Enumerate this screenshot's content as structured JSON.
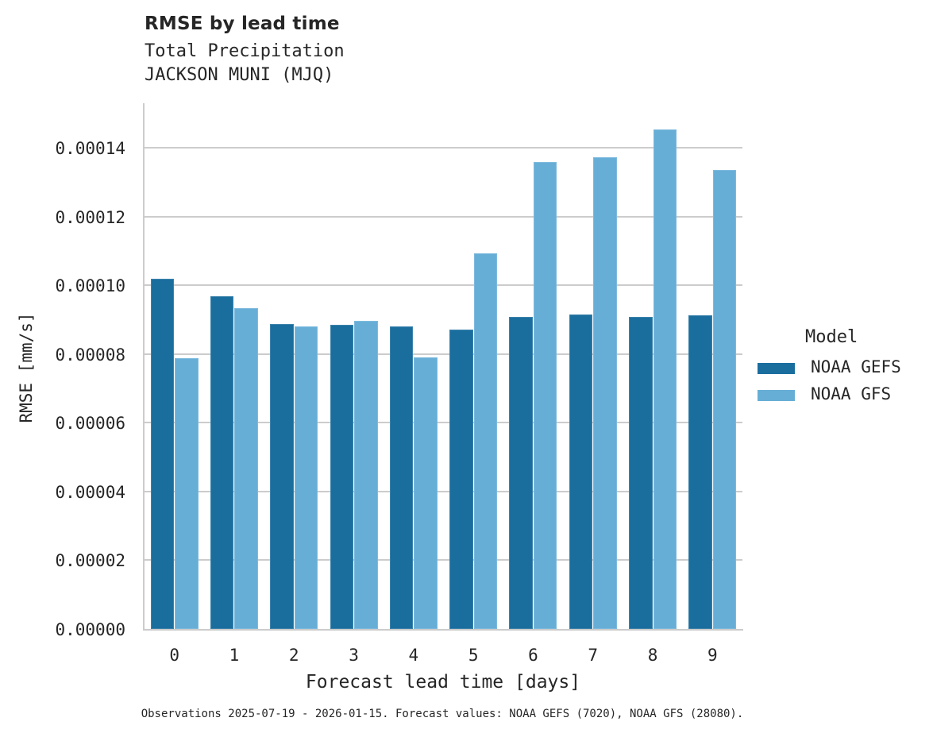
{
  "header": {
    "title": "RMSE by lead time",
    "subtitle_1": "Total Precipitation",
    "subtitle_2": "JACKSON MUNI (MJQ)"
  },
  "axes": {
    "xlabel": "Forecast lead time [days]",
    "ylabel": "RMSE [mm/s]",
    "yticks": [
      "0.00000",
      "0.00002",
      "0.00004",
      "0.00006",
      "0.00008",
      "0.00010",
      "0.00012",
      "0.00014"
    ],
    "xticks": [
      "0",
      "1",
      "2",
      "3",
      "4",
      "5",
      "6",
      "7",
      "8",
      "9"
    ]
  },
  "legend": {
    "title": "Model",
    "items": [
      {
        "label": "NOAA GEFS",
        "color": "#1a6e9e"
      },
      {
        "label": "NOAA GFS",
        "color": "#67aed7"
      }
    ]
  },
  "footnote": "Observations 2025-07-19 - 2026-01-15. Forecast values: NOAA GEFS (7020), NOAA GFS (28080).",
  "chart_data": {
    "type": "bar",
    "title": "RMSE by lead time",
    "subtitle": "Total Precipitation — JACKSON MUNI (MJQ)",
    "xlabel": "Forecast lead time [days]",
    "ylabel": "RMSE [mm/s]",
    "categories": [
      "0",
      "1",
      "2",
      "3",
      "4",
      "5",
      "6",
      "7",
      "8",
      "9"
    ],
    "series": [
      {
        "name": "NOAA GEFS",
        "color": "#1a6e9e",
        "values": [
          0.000102,
          9.68e-05,
          8.87e-05,
          8.85e-05,
          8.8e-05,
          8.71e-05,
          9.08e-05,
          9.15e-05,
          9.08e-05,
          9.12e-05
        ]
      },
      {
        "name": "NOAA GFS",
        "color": "#67aed7",
        "values": [
          7.88e-05,
          9.33e-05,
          8.8e-05,
          8.97e-05,
          7.9e-05,
          0.0001093,
          0.0001358,
          0.0001372,
          0.0001453,
          0.0001337
        ]
      }
    ],
    "ylim": [
      0,
      0.000153
    ],
    "yticks": [
      0,
      2e-05,
      4e-05,
      6e-05,
      8e-05,
      0.0001,
      0.00012,
      0.00014
    ],
    "grid": "y",
    "legend_position": "right",
    "footnote": "Observations 2025-07-19 - 2026-01-15. Forecast values: NOAA GEFS (7020), NOAA GFS (28080)."
  }
}
